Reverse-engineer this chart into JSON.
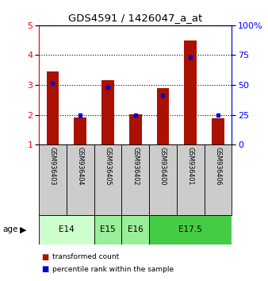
{
  "title": "GDS4591 / 1426047_a_at",
  "samples": [
    "GSM936403",
    "GSM936404",
    "GSM936405",
    "GSM936402",
    "GSM936400",
    "GSM936401",
    "GSM936406"
  ],
  "transformed_counts": [
    3.45,
    1.9,
    3.15,
    2.02,
    2.9,
    4.48,
    1.88
  ],
  "percentile_ranks": [
    3.05,
    2.0,
    2.92,
    2.0,
    2.65,
    3.92,
    2.0
  ],
  "age_groups": [
    {
      "label": "E14",
      "start": 0,
      "end": 2,
      "color": "#ccffcc"
    },
    {
      "label": "E15",
      "start": 2,
      "end": 3,
      "color": "#99ee99"
    },
    {
      "label": "E16",
      "start": 3,
      "end": 4,
      "color": "#99ee99"
    },
    {
      "label": "E17.5",
      "start": 4,
      "end": 7,
      "color": "#44cc44"
    }
  ],
  "ylim_main": [
    1,
    5
  ],
  "yticks_left": [
    1,
    2,
    3,
    4,
    5
  ],
  "yticks_right": [
    0,
    25,
    50,
    75,
    100
  ],
  "bar_color": "#aa1100",
  "dot_color": "#0000cc",
  "sample_box_color": "#cccccc",
  "legend_red": "transformed count",
  "legend_blue": "percentile rank within the sample",
  "background_color": "#ffffff"
}
